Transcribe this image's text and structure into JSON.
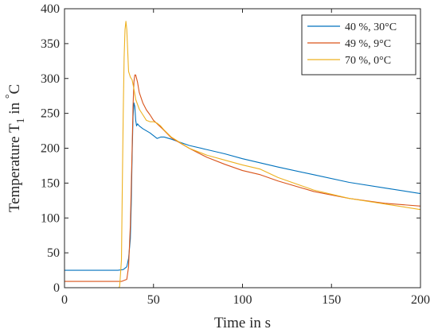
{
  "chart_data": {
    "type": "line",
    "xlabel": "Time in s",
    "ylabel": {
      "prefix": "Temperature T",
      "subscript": "1",
      "suffix": " in ",
      "degree": "°",
      "unit": "C"
    },
    "xlim": [
      0,
      200
    ],
    "ylim": [
      0,
      400
    ],
    "xticks": [
      0,
      50,
      100,
      150,
      200
    ],
    "yticks": [
      0,
      50,
      100,
      150,
      200,
      250,
      300,
      350,
      400
    ],
    "grid": false,
    "legend_position": "top-right",
    "series": [
      {
        "name": "40 %, 30°C",
        "color": "#0072BD",
        "points": [
          [
            0,
            25
          ],
          [
            30,
            25
          ],
          [
            33,
            26
          ],
          [
            35,
            30
          ],
          [
            36,
            42
          ],
          [
            37,
            70
          ],
          [
            37.5,
            120
          ],
          [
            38,
            190
          ],
          [
            38.5,
            245
          ],
          [
            39,
            265
          ],
          [
            39.5,
            260
          ],
          [
            40,
            240
          ],
          [
            40.5,
            232
          ],
          [
            41,
            235
          ],
          [
            42,
            232
          ],
          [
            44,
            228
          ],
          [
            46,
            225
          ],
          [
            48,
            222
          ],
          [
            50,
            218
          ],
          [
            52,
            214
          ],
          [
            54,
            216
          ],
          [
            56,
            216
          ],
          [
            60,
            213
          ],
          [
            70,
            204
          ],
          [
            80,
            198
          ],
          [
            90,
            192
          ],
          [
            100,
            185
          ],
          [
            120,
            173
          ],
          [
            140,
            162
          ],
          [
            160,
            151
          ],
          [
            180,
            143
          ],
          [
            200,
            135
          ]
        ]
      },
      {
        "name": "49 %, 9°C",
        "color": "#D95319",
        "points": [
          [
            0,
            9
          ],
          [
            32,
            9
          ],
          [
            35,
            12
          ],
          [
            36,
            30
          ],
          [
            37,
            90
          ],
          [
            38,
            200
          ],
          [
            38.5,
            260
          ],
          [
            39,
            295
          ],
          [
            39.5,
            305
          ],
          [
            40,
            305
          ],
          [
            41,
            295
          ],
          [
            42,
            280
          ],
          [
            44,
            265
          ],
          [
            46,
            255
          ],
          [
            48,
            248
          ],
          [
            50,
            240
          ],
          [
            55,
            228
          ],
          [
            60,
            215
          ],
          [
            70,
            200
          ],
          [
            80,
            187
          ],
          [
            90,
            177
          ],
          [
            100,
            168
          ],
          [
            110,
            162
          ],
          [
            120,
            153
          ],
          [
            140,
            138
          ],
          [
            160,
            128
          ],
          [
            180,
            121
          ],
          [
            200,
            117
          ]
        ]
      },
      {
        "name": "70 %, 0°C",
        "color": "#EDB120",
        "points": [
          [
            0,
            -2
          ],
          [
            30,
            -2
          ],
          [
            31,
            2
          ],
          [
            32,
            40
          ],
          [
            32.5,
            150
          ],
          [
            33,
            250
          ],
          [
            33.5,
            330
          ],
          [
            34,
            370
          ],
          [
            34.5,
            382
          ],
          [
            35,
            370
          ],
          [
            35.5,
            340
          ],
          [
            36,
            310
          ],
          [
            37,
            302
          ],
          [
            38,
            298
          ],
          [
            39,
            285
          ],
          [
            40,
            270
          ],
          [
            42,
            256
          ],
          [
            44,
            248
          ],
          [
            46,
            240
          ],
          [
            48,
            238
          ],
          [
            50,
            238
          ],
          [
            52,
            236
          ],
          [
            54,
            232
          ],
          [
            56,
            226
          ],
          [
            60,
            216
          ],
          [
            70,
            200
          ],
          [
            80,
            190
          ],
          [
            90,
            183
          ],
          [
            100,
            176
          ],
          [
            110,
            170
          ],
          [
            120,
            158
          ],
          [
            140,
            140
          ],
          [
            160,
            128
          ],
          [
            180,
            120
          ],
          [
            200,
            112
          ]
        ]
      }
    ]
  }
}
